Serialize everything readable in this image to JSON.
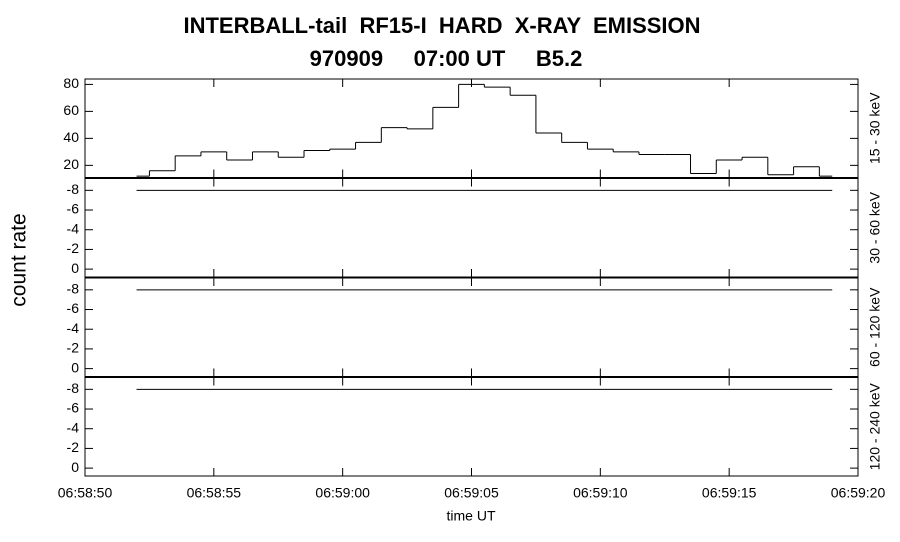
{
  "chart_data": [
    {
      "type": "histogram",
      "title": "INTERBALL-tail  RF15-I  HARD  X-RAY  EMISSION",
      "subtitle": "970909     07:00 UT     B5.2",
      "y_label": "count rate",
      "right_label": "15 - 30 keV",
      "bins": [
        2.0,
        2.5,
        3.5,
        4.5,
        5.5,
        6.5,
        7.5,
        8.5,
        9.5,
        10.5,
        11.5,
        12.5,
        13.5,
        14.5,
        15.5,
        16.5,
        17.5,
        18.5,
        19.5,
        20.5,
        21.5,
        22.5,
        23.5,
        24.5,
        25.5,
        26.5,
        27.5,
        28.5,
        29.0
      ],
      "counts": [
        12,
        16,
        27,
        30,
        24,
        30,
        26,
        31,
        32,
        37,
        48,
        47,
        63,
        80,
        78,
        72,
        44,
        37,
        32,
        30,
        28,
        28,
        14,
        24,
        26,
        13,
        19,
        12
      ],
      "color": "#000000",
      "xlim": [
        0,
        30
      ],
      "ylim": [
        11,
        84
      ],
      "yticks": [
        20,
        40,
        60,
        80
      ]
    },
    {
      "type": "line",
      "right_label": "30 - 60 keV",
      "x": [
        2,
        29
      ],
      "values": [
        -8,
        -8
      ],
      "color": "#000000",
      "xlim": [
        0,
        30
      ],
      "ylim": [
        0.8,
        -9.2
      ],
      "yticks": [
        -8,
        -6,
        -4,
        -2,
        0
      ]
    },
    {
      "type": "line",
      "right_label": "60 - 120 keV",
      "x": [
        2,
        29
      ],
      "values": [
        -8,
        -8
      ],
      "color": "#000000",
      "xlim": [
        0,
        30
      ],
      "ylim": [
        0.8,
        -9.2
      ],
      "yticks": [
        -8,
        -6,
        -4,
        -2,
        0
      ]
    },
    {
      "type": "line",
      "right_label": "120 - 240 keV",
      "x_label": "time UT",
      "x": [
        2,
        29
      ],
      "values": [
        -8,
        -8
      ],
      "color": "#000000",
      "xlim": [
        0,
        30
      ],
      "ylim": [
        0.8,
        -9.2
      ],
      "yticks": [
        -8,
        -6,
        -4,
        -2,
        0
      ],
      "xticks": [
        {
          "value": 0,
          "label": "06:58:50"
        },
        {
          "value": 5,
          "label": "06:58:55"
        },
        {
          "value": 10,
          "label": "06:59:00"
        },
        {
          "value": 15,
          "label": "06:59:05"
        },
        {
          "value": 20,
          "label": "06:59:10"
        },
        {
          "value": 25,
          "label": "06:59:15"
        },
        {
          "value": 30,
          "label": "06:59:20"
        }
      ]
    }
  ]
}
